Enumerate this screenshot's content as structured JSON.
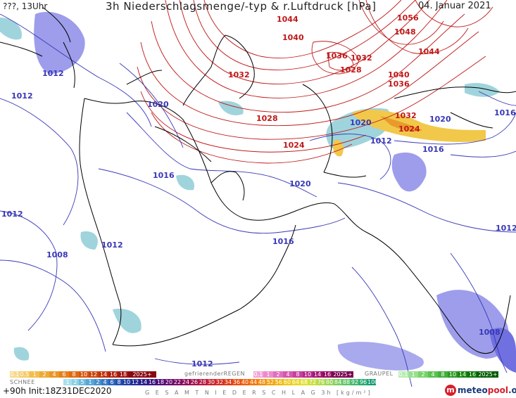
{
  "header": {
    "run_label": "???, 13Uhr",
    "title": "3h Niederschlagsmenge/-typ & r.Luftdruck [hPa]",
    "date": "04. Januar 2021"
  },
  "pressure_labels": {
    "high": [
      "1044",
      "1040",
      "1036",
      "1032",
      "1028",
      "1024",
      "1056",
      "1048",
      "1044",
      "1036",
      "1032",
      "1028",
      "1040",
      "1036",
      "1032",
      "1024"
    ],
    "low": [
      "1012",
      "1012",
      "1020",
      "1016",
      "1012",
      "1008",
      "1012",
      "1016",
      "1020",
      "1020",
      "1012",
      "1016",
      "1016",
      "1012",
      "1008",
      "1012"
    ]
  },
  "legend": {
    "snow_label": "SCHNEE",
    "freezing_label": "gefrierenderREGEN",
    "graupel_label": "GRAUPEL",
    "total_label": "G E S A M T N I E D E R S C H L A G   3h  [kg/m²]",
    "rain_top": [
      "0.1",
      "0.5",
      "1",
      "2",
      "4",
      "6",
      "8",
      "10",
      "12",
      "14",
      "16",
      "18",
      "2025+"
    ],
    "freezing": [
      "0.1",
      "1",
      "2",
      "4",
      "8",
      "10",
      "14",
      "16",
      "2025+"
    ],
    "graupel": [
      "0.1",
      "1",
      "2",
      "4",
      "8",
      "10",
      "14",
      "16",
      "2025+"
    ],
    "snow": [
      "1",
      "2",
      "5",
      "1",
      "2",
      "4",
      "6",
      "8",
      "10",
      "12",
      "14",
      "16",
      "18",
      "20",
      "22",
      "24",
      "26",
      "28",
      "30",
      "32",
      "34",
      "36",
      "40",
      "44",
      "48",
      "52",
      "56",
      "60",
      "64",
      "68",
      "72",
      "76",
      "80",
      "84",
      "88",
      "92",
      "96",
      "100"
    ]
  },
  "colors": {
    "isobar_high": "#c01818",
    "isobar_low": "#3838b8",
    "coast": "#000000",
    "precip_light": "#9fd4dc",
    "precip_purple": "#8c8ce8",
    "snow_yellow": "#f2c84a"
  },
  "footer": {
    "forecast": "+90h  Init:18Z31DEC2020",
    "brand_a": "meteo",
    "brand_b": "pool",
    "brand_c": ".org"
  }
}
